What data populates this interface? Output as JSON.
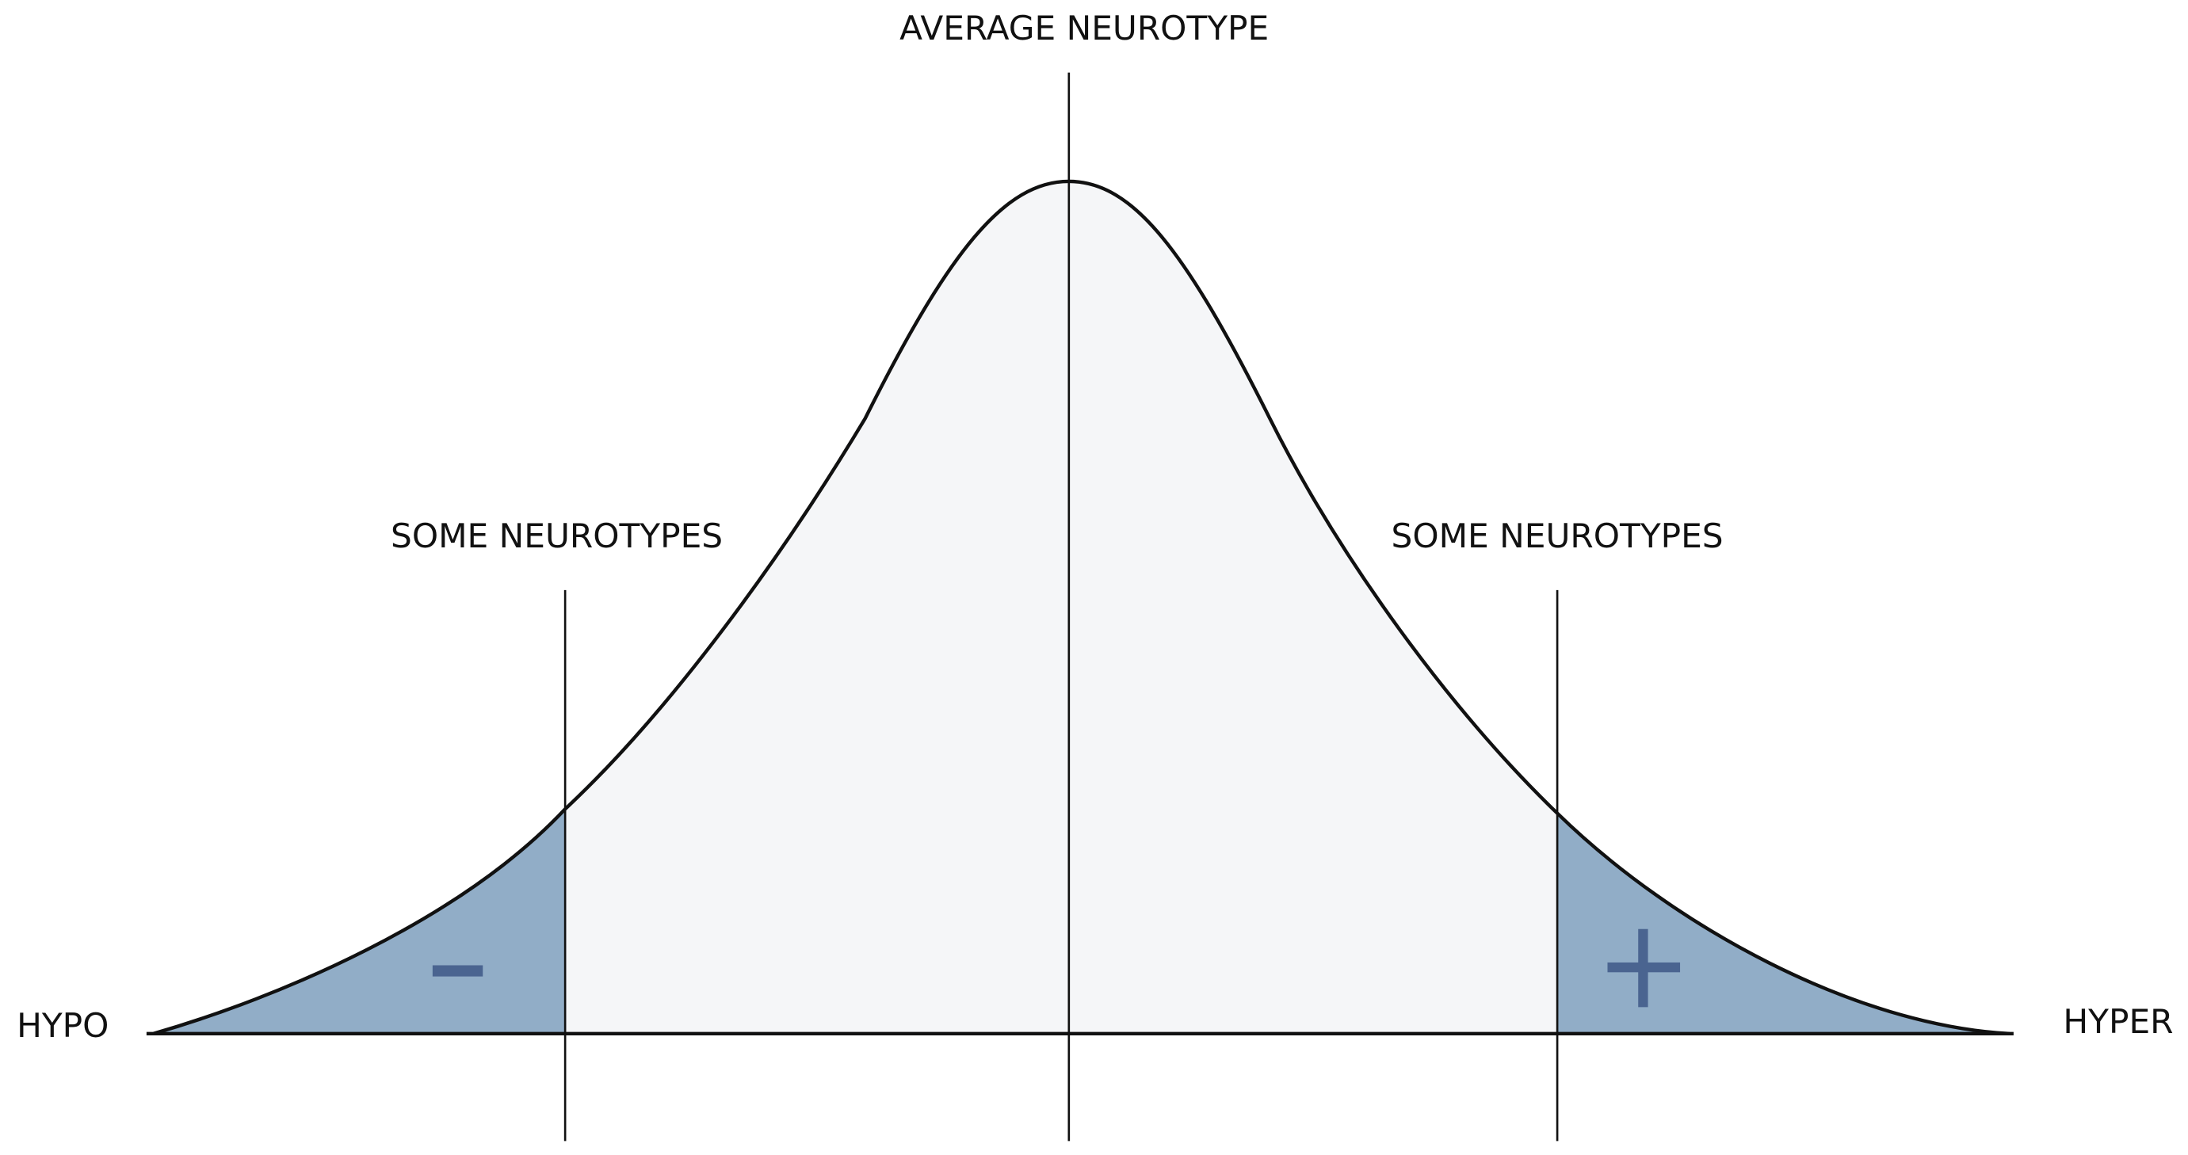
{
  "center_label": "AVERAGE NEUROTYPE",
  "tail_labels": [
    "SOME NEUROTYPES",
    "SOME NEUROTYPES"
  ],
  "axis_ends": {
    "left": "HYPO",
    "right": "HYPER"
  }
}
